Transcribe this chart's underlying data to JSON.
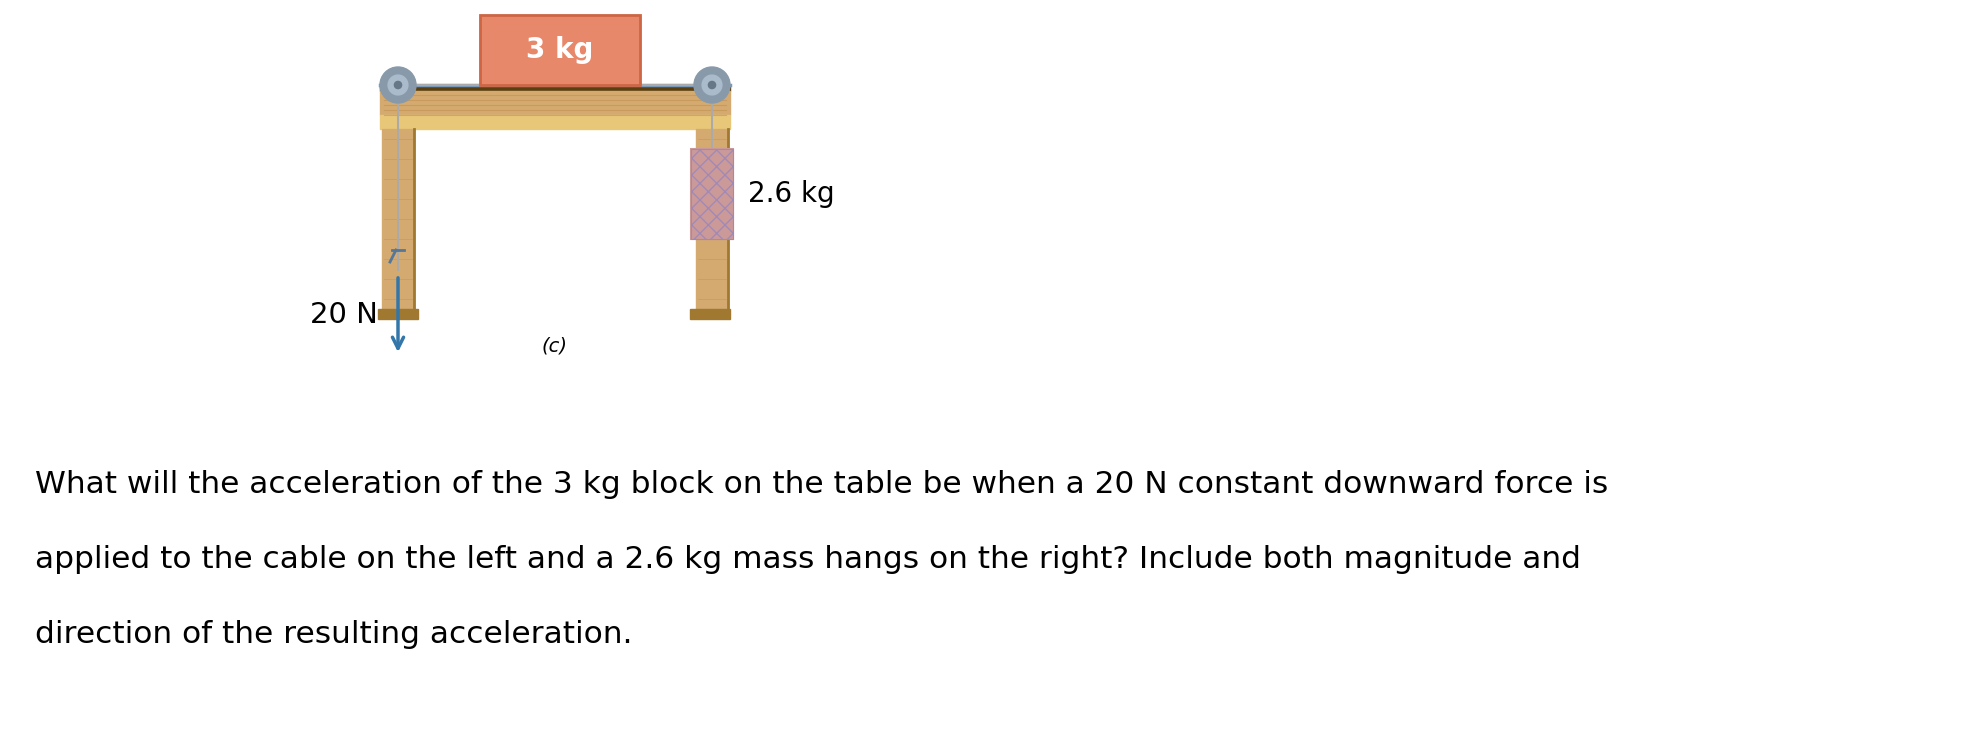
{
  "fig_width": 19.65,
  "fig_height": 7.38,
  "bg_color": "#ffffff",
  "table_top_color": "#d4aa70",
  "table_top_grain": "#c09050",
  "table_top_dark_edge": "#5a4010",
  "table_top_front": "#e8c878",
  "table_leg_color": "#d4aa70",
  "table_leg_grain": "#c09050",
  "table_leg_dark": "#a07830",
  "block_color": "#e8886a",
  "block_edge_color": "#cc6644",
  "block_text": "3 kg",
  "block_text_color": "#ffffff",
  "left_force_text": "20 N",
  "right_mass_text": "2.6 kg",
  "label_c": "(c)",
  "cable_color": "#aaaaaa",
  "pulley_color": "#8899aa",
  "pulley_inner": "#aabbcc",
  "pulley_center": "#667788",
  "arrow_color": "#3377aa",
  "mass_face_color": "#cc9999",
  "mass_hatch_color": "#9988bb",
  "mass_edge_color": "#886666",
  "question_line1": "What will the acceleration of the 3 kg block on the table be when a 20 N constant downward force is",
  "question_line2": "applied to the cable on the left and a 2.6 kg mass hangs on the right? Include both magnitude and",
  "question_line3": "direction of the resulting acceleration.",
  "text_fontsize": 20,
  "question_fontsize": 22.5
}
